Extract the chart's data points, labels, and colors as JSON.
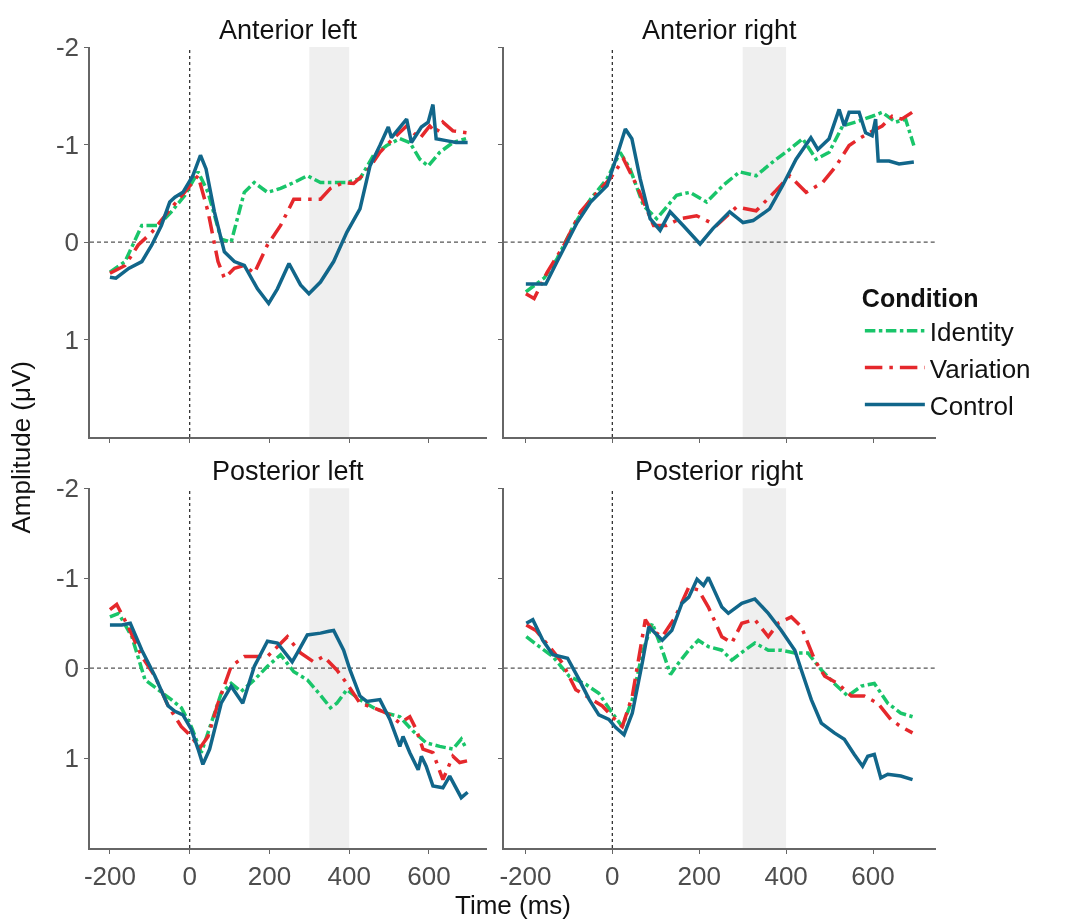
{
  "chart_data": [
    {
      "type": "line",
      "title": "Anterior left",
      "ylabel": "Amplitude (μV)",
      "xlim": [
        -250,
        745
      ],
      "ylim": [
        2,
        -2
      ],
      "xticks": [
        -200,
        0,
        200,
        400,
        600
      ],
      "yticks": [
        -2,
        -1,
        0,
        1
      ],
      "tick_labels": "y",
      "grid": false,
      "legend": "right",
      "legend_title": "Condition",
      "ref_lines": [
        {
          "axis": "x",
          "value": 0,
          "color": "#222222",
          "line_style": "dotted"
        },
        {
          "axis": "y",
          "value": 0,
          "color": "#555555",
          "line_style": "dashed"
        }
      ],
      "bands": [
        {
          "axis": "x",
          "from": 300,
          "to": 400,
          "color": "#efefef"
        }
      ],
      "series": [
        {
          "name": "Identity",
          "color": "#19c56a",
          "line_style": "dashdot",
          "x": [
            -200,
            -162,
            -120,
            -79,
            -46,
            -12,
            21,
            46,
            79,
            104,
            137,
            162,
            195,
            228,
            261,
            295,
            328,
            361,
            394,
            427,
            461,
            494,
            527,
            552,
            577,
            598,
            627,
            660,
            693
          ],
          "values": [
            0.31,
            0.2,
            -0.17,
            -0.17,
            -0.31,
            -0.48,
            -0.72,
            -0.51,
            -0.03,
            0.0,
            -0.51,
            -0.61,
            -0.51,
            -0.55,
            -0.61,
            -0.68,
            -0.61,
            -0.61,
            -0.61,
            -0.65,
            -0.89,
            -0.99,
            -1.06,
            -1.02,
            -0.85,
            -0.78,
            -0.92,
            -1.02,
            -1.06
          ]
        },
        {
          "name": "Variation",
          "color": "#e5282c",
          "line_style": "dashed",
          "x": [
            -200,
            -162,
            -129,
            -95,
            -54,
            -17,
            21,
            46,
            71,
            87,
            112,
            137,
            162,
            195,
            228,
            261,
            295,
            328,
            353,
            386,
            411,
            444,
            477,
            510,
            544,
            577,
            602,
            618,
            635,
            660,
            697
          ],
          "values": [
            0.32,
            0.24,
            0.03,
            -0.1,
            -0.31,
            -0.49,
            -0.68,
            -0.31,
            0.2,
            0.37,
            0.27,
            0.24,
            0.32,
            0.03,
            -0.17,
            -0.44,
            -0.44,
            -0.44,
            -0.55,
            -0.61,
            -0.6,
            -0.72,
            -0.92,
            -1.06,
            -1.19,
            -1.06,
            -1.19,
            -1.12,
            -1.23,
            -1.14,
            -1.12
          ]
        },
        {
          "name": "Control",
          "color": "#11668a",
          "line_style": "solid",
          "x": [
            -200,
            -185,
            -153,
            -120,
            -95,
            -71,
            -50,
            -37,
            -17,
            8,
            27,
            41,
            62,
            87,
            112,
            137,
            170,
            198,
            220,
            249,
            278,
            299,
            328,
            361,
            394,
            427,
            452,
            477,
            498,
            506,
            544,
            556,
            581,
            598,
            610,
            618,
            643,
            668,
            697
          ],
          "values": [
            0.36,
            0.37,
            0.27,
            0.2,
            0.03,
            -0.17,
            -0.41,
            -0.46,
            -0.51,
            -0.68,
            -0.89,
            -0.75,
            -0.31,
            0.1,
            0.2,
            0.24,
            0.48,
            0.63,
            0.48,
            0.22,
            0.44,
            0.53,
            0.41,
            0.2,
            -0.1,
            -0.34,
            -0.78,
            -0.99,
            -1.18,
            -1.07,
            -1.26,
            -1.02,
            -1.18,
            -1.23,
            -1.41,
            -1.06,
            -1.04,
            -1.02,
            -1.02
          ]
        }
      ]
    },
    {
      "type": "line",
      "title": "Anterior right",
      "xlim": [
        -250,
        745
      ],
      "ylim": [
        2,
        -2
      ],
      "xticks": [
        -200,
        0,
        200,
        400,
        600
      ],
      "yticks": [
        -2,
        -1,
        0,
        1
      ],
      "tick_labels": false,
      "grid": false,
      "ref_lines": [
        {
          "axis": "x",
          "value": 0,
          "color": "#222222",
          "line_style": "dotted"
        },
        {
          "axis": "y",
          "value": 0,
          "color": "#555555",
          "line_style": "dashed"
        }
      ],
      "bands": [
        {
          "axis": "x",
          "from": 300,
          "to": 400,
          "color": "#efefef"
        }
      ],
      "series": [
        {
          "color": "#19c56a",
          "line_style": "dashdot",
          "x": [
            -199,
            -157,
            -127,
            -89,
            -50,
            -12,
            18,
            41,
            72,
            102,
            148,
            179,
            217,
            255,
            293,
            331,
            369,
            408,
            438,
            469,
            499,
            530,
            560,
            598,
            621,
            652,
            675,
            694
          ],
          "values": [
            0.51,
            0.37,
            0.17,
            -0.17,
            -0.44,
            -0.65,
            -0.92,
            -0.75,
            -0.37,
            -0.24,
            -0.48,
            -0.51,
            -0.41,
            -0.58,
            -0.72,
            -0.68,
            -0.82,
            -0.95,
            -1.06,
            -0.85,
            -0.92,
            -1.19,
            -1.23,
            -1.29,
            -1.33,
            -1.23,
            -1.26,
            -0.99
          ]
        },
        {
          "color": "#e5282c",
          "line_style": "dashed",
          "x": [
            -199,
            -180,
            -150,
            -111,
            -73,
            -35,
            -5,
            26,
            56,
            95,
            125,
            156,
            194,
            240,
            286,
            331,
            377,
            408,
            446,
            484,
            515,
            545,
            568,
            591,
            621,
            644,
            666,
            690
          ],
          "values": [
            0.53,
            0.58,
            0.31,
            0.03,
            -0.31,
            -0.51,
            -0.65,
            -0.85,
            -0.58,
            -0.17,
            -0.17,
            -0.24,
            -0.27,
            -0.17,
            -0.36,
            -0.32,
            -0.53,
            -0.68,
            -0.51,
            -0.61,
            -0.78,
            -0.99,
            -1.06,
            -1.12,
            -1.19,
            -1.29,
            -1.26,
            -1.33
          ]
        },
        {
          "color": "#11668a",
          "line_style": "solid",
          "x": [
            -199,
            -153,
            -127,
            -104,
            -81,
            -50,
            -12,
            11,
            30,
            45,
            64,
            87,
            110,
            133,
            163,
            202,
            232,
            270,
            301,
            324,
            362,
            392,
            423,
            457,
            473,
            499,
            522,
            534,
            545,
            568,
            583,
            598,
            606,
            612,
            637,
            660,
            694
          ],
          "values": [
            0.43,
            0.43,
            0.2,
            0.0,
            -0.2,
            -0.41,
            -0.58,
            -0.89,
            -1.16,
            -1.06,
            -0.65,
            -0.24,
            -0.12,
            -0.31,
            -0.17,
            0.02,
            -0.14,
            -0.31,
            -0.2,
            -0.22,
            -0.34,
            -0.58,
            -0.85,
            -1.07,
            -0.95,
            -1.06,
            -1.36,
            -1.19,
            -1.33,
            -1.33,
            -1.12,
            -1.09,
            -1.26,
            -0.83,
            -0.83,
            -0.8,
            -0.82
          ]
        }
      ]
    },
    {
      "type": "line",
      "title": "Posterior left",
      "xlabel": "Time (ms)",
      "xlim": [
        -250,
        745
      ],
      "ylim": [
        2,
        -2
      ],
      "xticks": [
        -200,
        0,
        200,
        400,
        600
      ],
      "yticks": [
        -2,
        -1,
        0,
        1
      ],
      "grid": false,
      "legend": false,
      "ref_lines": [
        {
          "axis": "x",
          "value": 0,
          "color": "#222222",
          "line_style": "dotted"
        },
        {
          "axis": "y",
          "value": 0,
          "color": "#555555",
          "line_style": "dashed"
        }
      ],
      "bands": [
        {
          "axis": "x",
          "from": 300,
          "to": 400,
          "color": "#efefef"
        }
      ],
      "series": [
        {
          "color": "#19c56a",
          "line_style": "dashdot",
          "x": [
            -200,
            -178,
            -145,
            -112,
            -79,
            -46,
            -21,
            4,
            29,
            54,
            79,
            104,
            129,
            162,
            195,
            228,
            261,
            295,
            328,
            353,
            369,
            394,
            427,
            461,
            494,
            527,
            560,
            593,
            627,
            660,
            681,
            693
          ],
          "values": [
            -0.57,
            -0.61,
            -0.35,
            0.13,
            0.24,
            0.35,
            0.44,
            0.65,
            0.94,
            0.61,
            0.28,
            0.17,
            0.26,
            0.13,
            -0.02,
            -0.15,
            0.04,
            0.13,
            0.3,
            0.44,
            0.39,
            0.24,
            0.35,
            0.44,
            0.5,
            0.54,
            0.7,
            0.83,
            0.87,
            0.9,
            0.79,
            0.89
          ]
        },
        {
          "color": "#e5282c",
          "line_style": "dashed",
          "x": [
            -200,
            -183,
            -154,
            -120,
            -87,
            -54,
            -21,
            4,
            25,
            46,
            71,
            104,
            137,
            162,
            195,
            245,
            278,
            311,
            336,
            369,
            394,
            427,
            461,
            494,
            527,
            552,
            568,
            585,
            610,
            635,
            660,
            677,
            697
          ],
          "values": [
            -0.65,
            -0.71,
            -0.46,
            -0.13,
            0.09,
            0.42,
            0.65,
            0.76,
            0.89,
            0.76,
            0.39,
            -0.02,
            -0.13,
            -0.13,
            -0.13,
            -0.35,
            -0.17,
            -0.07,
            -0.13,
            0.02,
            0.17,
            0.39,
            0.44,
            0.5,
            0.61,
            0.54,
            0.68,
            0.9,
            0.94,
            1.24,
            0.98,
            1.05,
            1.03
          ]
        },
        {
          "color": "#11668a",
          "line_style": "solid",
          "x": [
            -200,
            -170,
            -149,
            -120,
            -87,
            -54,
            -37,
            -17,
            4,
            21,
            33,
            50,
            79,
            104,
            133,
            162,
            195,
            220,
            257,
            270,
            295,
            328,
            349,
            361,
            386,
            402,
            427,
            444,
            477,
            502,
            527,
            535,
            552,
            573,
            581,
            593,
            610,
            635,
            652,
            681,
            697
          ],
          "values": [
            -0.48,
            -0.48,
            -0.5,
            -0.2,
            0.09,
            0.42,
            0.48,
            0.52,
            0.68,
            0.9,
            1.07,
            0.9,
            0.39,
            0.2,
            0.39,
            -0.02,
            -0.3,
            -0.28,
            -0.07,
            -0.17,
            -0.37,
            -0.39,
            -0.41,
            -0.42,
            -0.2,
            0.02,
            0.31,
            0.37,
            0.35,
            0.57,
            0.87,
            0.76,
            0.94,
            1.13,
            0.98,
            1.09,
            1.31,
            1.33,
            1.2,
            1.44,
            1.38
          ]
        }
      ]
    },
    {
      "type": "line",
      "title": "Posterior right",
      "xlim": [
        -250,
        745
      ],
      "ylim": [
        2,
        -2
      ],
      "xticks": [
        -200,
        0,
        200,
        400,
        600
      ],
      "yticks": [
        -2,
        -1,
        0,
        1
      ],
      "tick_labels": "x",
      "grid": false,
      "legend": false,
      "ref_lines": [
        {
          "axis": "x",
          "value": 0,
          "color": "#222222",
          "line_style": "dotted"
        },
        {
          "axis": "y",
          "value": 0,
          "color": "#555555",
          "line_style": "dashed"
        }
      ],
      "bands": [
        {
          "axis": "x",
          "from": 300,
          "to": 400,
          "color": "#efefef"
        }
      ],
      "series": [
        {
          "color": "#19c56a",
          "line_style": "dashdot",
          "x": [
            -198,
            -168,
            -137,
            -99,
            -61,
            -31,
            0,
            23,
            46,
            69,
            92,
            115,
            134,
            153,
            176,
            198,
            221,
            252,
            275,
            305,
            328,
            359,
            389,
            420,
            450,
            481,
            511,
            542,
            573,
            603,
            634,
            664,
            691
          ],
          "values": [
            -0.35,
            -0.24,
            -0.13,
            0.09,
            0.18,
            0.28,
            0.5,
            0.65,
            0.35,
            -0.17,
            -0.5,
            -0.2,
            0.07,
            -0.06,
            -0.2,
            -0.31,
            -0.24,
            -0.2,
            -0.09,
            -0.2,
            -0.28,
            -0.2,
            -0.2,
            -0.17,
            -0.17,
            0.02,
            0.17,
            0.31,
            0.2,
            0.17,
            0.39,
            0.5,
            0.54
          ]
        },
        {
          "color": "#e5282c",
          "line_style": "dashed",
          "x": [
            -198,
            -176,
            -145,
            -115,
            -84,
            -53,
            -23,
            0,
            23,
            46,
            76,
            92,
            115,
            145,
            176,
            198,
            221,
            252,
            275,
            298,
            328,
            359,
            382,
            412,
            435,
            466,
            489,
            519,
            550,
            580,
            611,
            641,
            664,
            691
          ],
          "values": [
            -0.48,
            -0.42,
            -0.24,
            -0.06,
            0.24,
            0.33,
            0.42,
            0.54,
            0.65,
            0.31,
            -0.54,
            -0.42,
            -0.35,
            -0.57,
            -0.9,
            -0.87,
            -0.68,
            -0.35,
            -0.28,
            -0.5,
            -0.54,
            -0.35,
            -0.5,
            -0.57,
            -0.46,
            -0.09,
            0.09,
            0.17,
            0.31,
            0.31,
            0.39,
            0.57,
            0.65,
            0.72
          ]
        },
        {
          "color": "#11668a",
          "line_style": "solid",
          "x": [
            -198,
            -183,
            -160,
            -137,
            -103,
            -76,
            -53,
            -31,
            -8,
            8,
            27,
            46,
            69,
            84,
            115,
            137,
            160,
            176,
            195,
            210,
            221,
            252,
            267,
            298,
            328,
            359,
            389,
            420,
            435,
            458,
            481,
            511,
            534,
            557,
            576,
            588,
            603,
            618,
            634,
            664,
            691
          ],
          "values": [
            -0.5,
            -0.54,
            -0.31,
            -0.15,
            -0.11,
            0.13,
            0.35,
            0.52,
            0.57,
            0.66,
            0.74,
            0.5,
            -0.06,
            -0.46,
            -0.31,
            -0.42,
            -0.72,
            -0.79,
            -0.99,
            -0.92,
            -1.01,
            -0.68,
            -0.61,
            -0.72,
            -0.77,
            -0.61,
            -0.42,
            -0.2,
            0.02,
            0.35,
            0.61,
            0.72,
            0.79,
            0.96,
            1.09,
            0.98,
            0.96,
            1.22,
            1.18,
            1.2,
            1.24
          ]
        }
      ]
    }
  ]
}
